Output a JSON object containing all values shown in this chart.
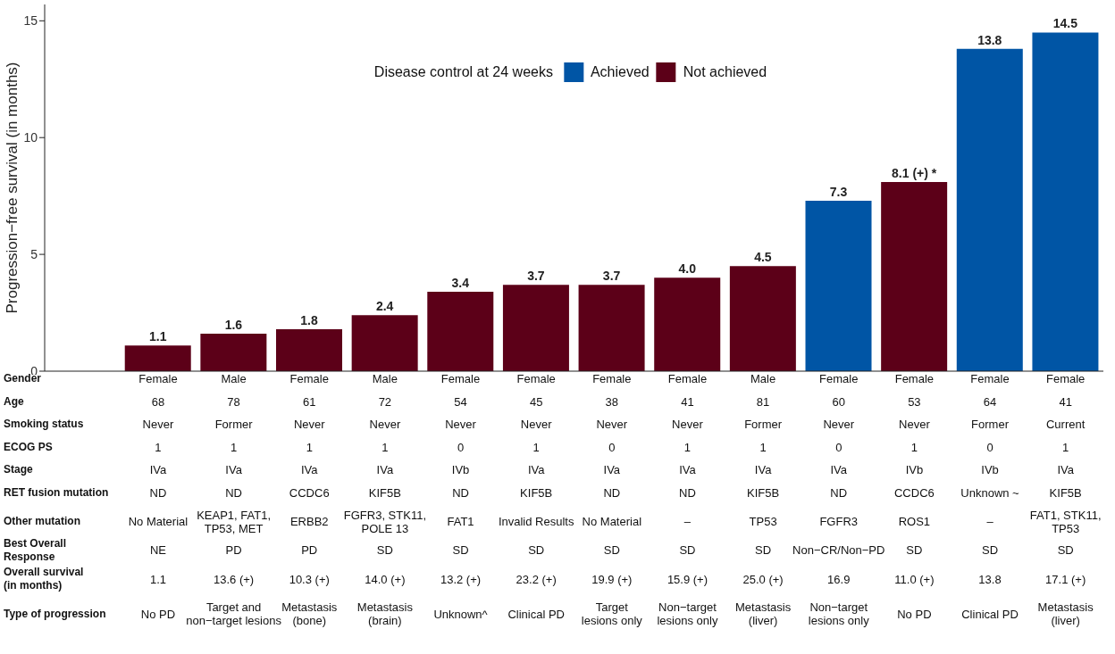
{
  "chart_data": {
    "type": "bar",
    "ylabel": "Progression−free survival (in months)",
    "legend_title": "Disease control at 24 weeks",
    "legend": "top",
    "stacked": true,
    "categories": [
      null,
      null,
      null,
      null,
      null,
      null,
      null,
      null,
      null,
      null,
      null,
      null,
      null,
      null
    ],
    "ylim": [
      0,
      15.7
    ],
    "yticks": [
      0,
      5,
      10,
      15
    ],
    "series": [
      {
        "name": "Achieved",
        "color": "#0055a5",
        "values": [
          null,
          null,
          null,
          null,
          null,
          null,
          null,
          null,
          null,
          null,
          7.3,
          null,
          13.8,
          14.5
        ],
        "value_labels": [
          null,
          null,
          null,
          null,
          null,
          null,
          null,
          null,
          null,
          null,
          "7.3",
          null,
          "13.8",
          "14.5"
        ]
      },
      {
        "name": "Not achieved",
        "color": "#5c0018",
        "values": [
          null,
          1.1,
          1.6,
          1.8,
          2.4,
          3.4,
          3.7,
          3.7,
          4.0,
          4.5,
          null,
          8.1,
          null,
          null
        ],
        "value_labels": [
          null,
          "1.1",
          "1.6",
          "1.8",
          "2.4",
          "3.4",
          "3.7",
          "3.7",
          "4.0",
          "4.5",
          null,
          "8.1 (+) *",
          null,
          null
        ]
      }
    ],
    "annotations": [
      "Gender",
      "Female",
      "Male",
      "Female",
      "Male",
      "Female",
      "Female",
      "Female",
      "Female",
      "Male",
      "Female",
      "Female",
      "Female",
      "Female",
      "Age",
      "68",
      "78",
      "61",
      "72",
      "54",
      "45",
      "38",
      "41",
      "81",
      "60",
      "53",
      "64",
      "41",
      "Smoking status",
      "Never",
      "Former",
      "Never",
      "Never",
      "Never",
      "Never",
      "Never",
      "Never",
      "Former",
      "Never",
      "Never",
      "Former",
      "Current",
      "ECOG PS",
      "1",
      "1",
      "1",
      "1",
      "0",
      "1",
      "0",
      "1",
      "1",
      "0",
      "1",
      "0",
      "1",
      "Stage",
      "IVa",
      "IVa",
      "IVa",
      "IVa",
      "IVb",
      "IVa",
      "IVa",
      "IVa",
      "IVa",
      "IVa",
      "IVb",
      "IVb",
      "IVa",
      "RET fusion mutation",
      "ND",
      "ND",
      "CCDC6",
      "KIF5B",
      "ND",
      "KIF5B",
      "ND",
      "ND",
      "KIF5B",
      "ND",
      "CCDC6",
      "Unknown ~",
      "KIF5B",
      "Other mutation",
      "No Material",
      "KEAP1, FAT1,\nTP53, MET",
      "ERBB2",
      "FGFR3, STK11,\nPOLE 13",
      "FAT1",
      "Invalid Results",
      "No Material",
      "–",
      "TP53",
      "FGFR3",
      "ROS1",
      "–",
      "FAT1, STK11,\nTP53",
      "Best Overall Response",
      "NE",
      "PD",
      "PD",
      "SD",
      "SD",
      "SD",
      "SD",
      "SD",
      "SD",
      "Non−CR/Non−PD",
      "SD",
      "SD",
      "SD",
      "Overall survival\n(in months)",
      "1.1",
      "13.6 (+)",
      "10.3 (+)",
      "14.0 (+)",
      "13.2 (+)",
      "23.2 (+)",
      "19.9 (+)",
      "15.9 (+)",
      "25.0 (+)",
      "16.9",
      "11.0 (+)",
      "13.8",
      "17.1 (+)",
      "Type of progression",
      "No PD",
      "Target and\nnon−target lesions",
      "Metastasis\n(bone)",
      "Metastasis\n(brain)",
      "Unknown^",
      "Clinical PD",
      "Target\nlesions only",
      "Non−target\nlesions only",
      "Metastasis\n(liver)",
      "Non−target\nlesions only",
      "No PD",
      "Clinical PD",
      "Metastasis\n(liver)"
    ]
  }
}
